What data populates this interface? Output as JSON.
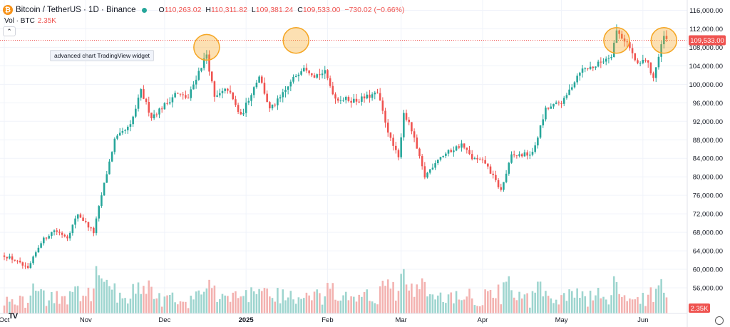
{
  "header": {
    "title": "Bitcoin / TetherUS · 1D · Binance",
    "logo_glyph": "₿",
    "ohlc": [
      {
        "label": "O",
        "value": "110,263.02"
      },
      {
        "label": "H",
        "value": "110,311.82"
      },
      {
        "label": "L",
        "value": "109,381.24"
      },
      {
        "label": "C",
        "value": "109,533.00"
      }
    ],
    "change": "−730.02 (−0.66%)",
    "volume_label": "Vol · BTC",
    "volume_value": "2.35K",
    "tooltip": "advanced chart TradingView widget",
    "watermark": "TV"
  },
  "colors": {
    "up": "#26a69a",
    "down": "#ef5350",
    "up_volume": "#9ed5cf",
    "down_volume": "#f3b2b0",
    "highlight": "#f5a623",
    "grid": "#f0f3fa",
    "text": "#131722"
  },
  "chart_data": {
    "type": "candlestick",
    "title": "Bitcoin / TetherUS · 1D · Binance",
    "x_range": [
      "2024-10-01",
      "2025-06-10"
    ],
    "y_range": [
      52000,
      117000
    ],
    "y_ticks": [
      56000,
      60000,
      64000,
      68000,
      72000,
      76000,
      80000,
      84000,
      88000,
      92000,
      96000,
      100000,
      104000,
      108000,
      112000,
      116000
    ],
    "y_tick_labels": [
      "56,000.00",
      "60,000.00",
      "64,000.00",
      "68,000.00",
      "72,000.00",
      "76,000.00",
      "80,000.00",
      "84,000.00",
      "88,000.00",
      "92,000.00",
      "96,000.00",
      "100,000.00",
      "104,000.00",
      "108,000.00",
      "112,000.00",
      "116,000.00"
    ],
    "x_ticks": [
      {
        "date": "2024-10-01",
        "label": "Oct"
      },
      {
        "date": "2024-11-01",
        "label": "Nov"
      },
      {
        "date": "2024-12-01",
        "label": "Dec"
      },
      {
        "date": "2025-01-01",
        "label": "2025"
      },
      {
        "date": "2025-02-01",
        "label": "Feb"
      },
      {
        "date": "2025-03-01",
        "label": "Mar"
      },
      {
        "date": "2025-04-01",
        "label": "Apr"
      },
      {
        "date": "2025-05-01",
        "label": "May"
      },
      {
        "date": "2025-06-01",
        "label": "Jun"
      }
    ],
    "close_path": [
      [
        "2024-10-01",
        63000
      ],
      [
        "2024-10-05",
        62000
      ],
      [
        "2024-10-10",
        60000
      ],
      [
        "2024-10-15",
        66000
      ],
      [
        "2024-10-20",
        68500
      ],
      [
        "2024-10-25",
        67000
      ],
      [
        "2024-10-29",
        72000
      ],
      [
        "2024-11-04",
        68000
      ],
      [
        "2024-11-07",
        76000
      ],
      [
        "2024-11-12",
        88000
      ],
      [
        "2024-11-18",
        91000
      ],
      [
        "2024-11-22",
        98500
      ],
      [
        "2024-11-26",
        93000
      ],
      [
        "2024-12-02",
        96000
      ],
      [
        "2024-12-05",
        98000
      ],
      [
        "2024-12-10",
        97000
      ],
      [
        "2024-12-13",
        101500
      ],
      [
        "2024-12-17",
        106500
      ],
      [
        "2024-12-20",
        97000
      ],
      [
        "2024-12-25",
        99000
      ],
      [
        "2024-12-30",
        93000
      ],
      [
        "2025-01-06",
        102000
      ],
      [
        "2025-01-10",
        94500
      ],
      [
        "2025-01-14",
        97000
      ],
      [
        "2025-01-20",
        102000
      ],
      [
        "2025-01-23",
        104000
      ],
      [
        "2025-01-27",
        102000
      ],
      [
        "2025-01-31",
        102500
      ],
      [
        "2025-02-04",
        97000
      ],
      [
        "2025-02-12",
        96500
      ],
      [
        "2025-02-20",
        98000
      ],
      [
        "2025-02-25",
        88000
      ],
      [
        "2025-02-28",
        84000
      ],
      [
        "2025-03-02",
        94000
      ],
      [
        "2025-03-05",
        90000
      ],
      [
        "2025-03-10",
        80000
      ],
      [
        "2025-03-15",
        84000
      ],
      [
        "2025-03-24",
        87000
      ],
      [
        "2025-03-28",
        84000
      ],
      [
        "2025-04-02",
        83000
      ],
      [
        "2025-04-08",
        77000
      ],
      [
        "2025-04-12",
        84500
      ],
      [
        "2025-04-20",
        85000
      ],
      [
        "2025-04-25",
        94500
      ],
      [
        "2025-05-02",
        96500
      ],
      [
        "2025-05-08",
        103000
      ],
      [
        "2025-05-14",
        104000
      ],
      [
        "2025-05-20",
        106500
      ],
      [
        "2025-05-22",
        111500
      ],
      [
        "2025-05-26",
        109000
      ],
      [
        "2025-05-30",
        104000
      ],
      [
        "2025-06-02",
        105500
      ],
      [
        "2025-06-05",
        101500
      ],
      [
        "2025-06-09",
        110300
      ],
      [
        "2025-06-10",
        109533
      ]
    ],
    "last_price": 109533,
    "last_price_label": "109,533.00",
    "last_volume_label": "2.35K",
    "highlight_circles": [
      {
        "date": "2024-12-17",
        "price": 108000
      },
      {
        "date": "2025-01-20",
        "price": 109500
      },
      {
        "date": "2025-05-22",
        "price": 109500
      },
      {
        "date": "2025-06-09",
        "price": 109500
      }
    ],
    "volume": {
      "max_relative": 1.0
    }
  }
}
